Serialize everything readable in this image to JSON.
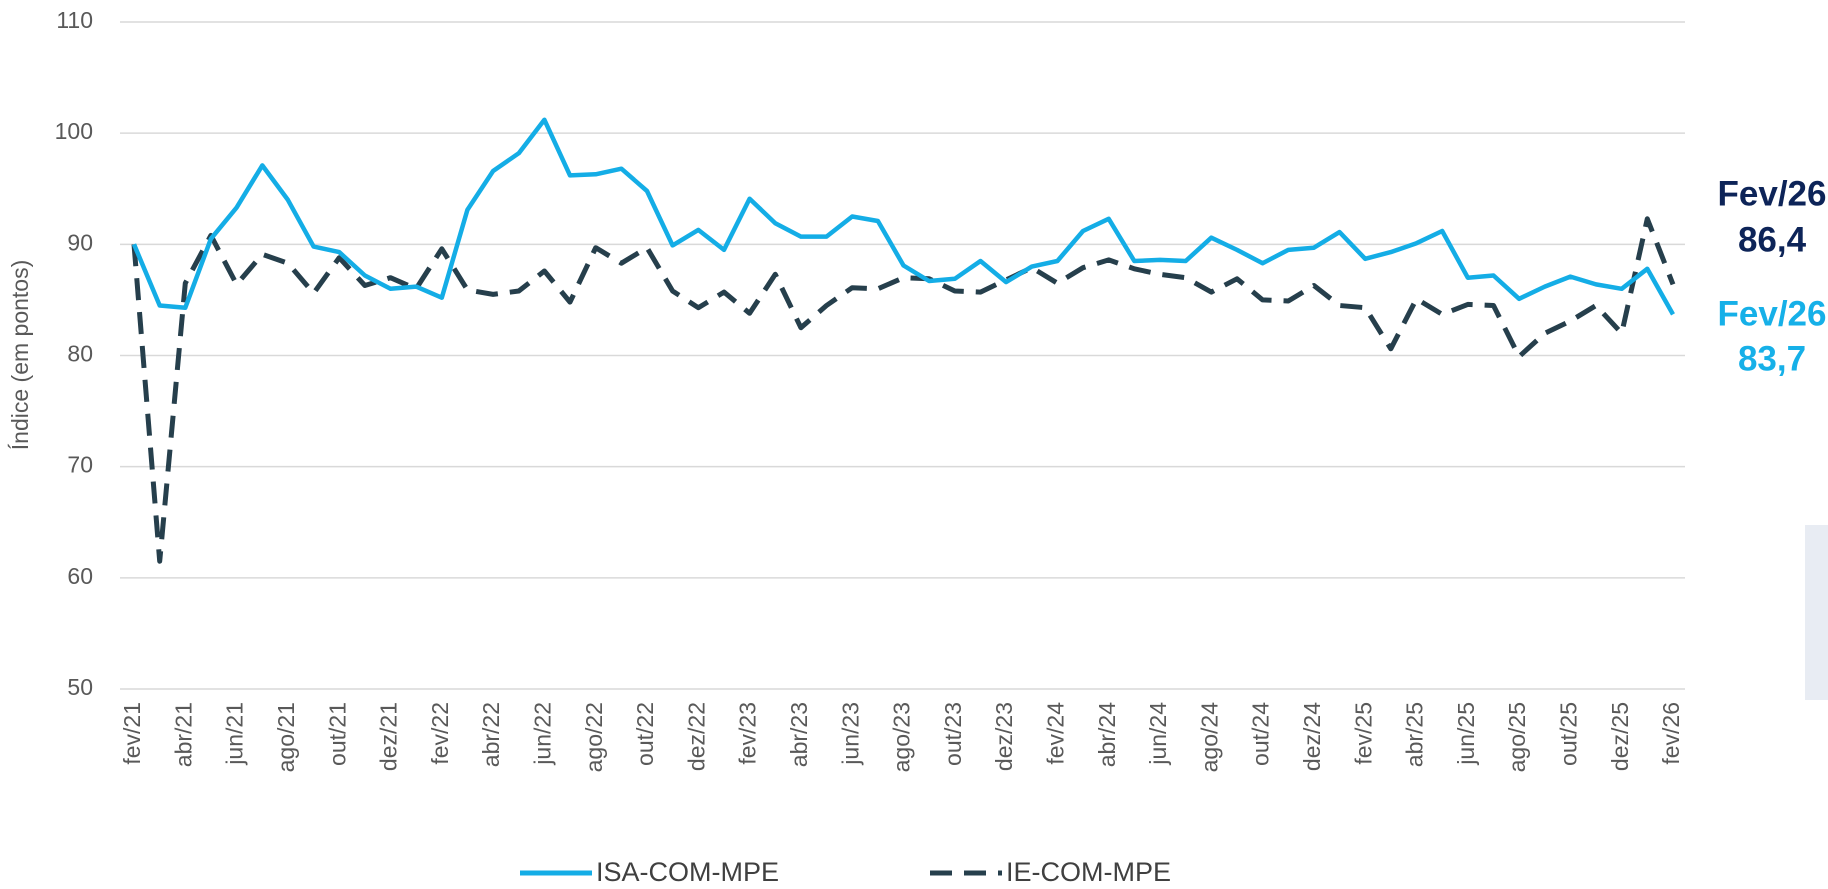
{
  "chart_data": {
    "type": "line",
    "y_label": "Índice (em pontos)",
    "categories": [
      "fev/21",
      null,
      "abr/21",
      null,
      "jun/21",
      null,
      "ago/21",
      null,
      "out/21",
      null,
      "dez/21",
      null,
      "fev/22",
      null,
      "abr/22",
      null,
      "jun/22",
      null,
      "ago/22",
      null,
      "out/22",
      null,
      "dez/22",
      null,
      "fev/23",
      null,
      "abr/23",
      null,
      "jun/23",
      null,
      "ago/23",
      null,
      "out/23",
      null,
      "dez/23",
      null,
      "fev/24",
      null,
      "abr/24",
      null,
      "jun/24",
      null,
      "ago/24",
      null,
      "out/24",
      null,
      "dez/24",
      null,
      "fev/25",
      null,
      "abr/25",
      null,
      "jun/25",
      null,
      "ago/25",
      null,
      "out/25",
      null,
      "dez/25",
      null,
      "fev/26"
    ],
    "series": [
      {
        "name": "ISA-COM-MPE",
        "color": "#14ade6",
        "dashed": false,
        "values": [
          90.0,
          84.5,
          84.3,
          90.5,
          93.3,
          97.1,
          94.0,
          89.8,
          89.3,
          87.2,
          86.0,
          86.2,
          85.2,
          93.1,
          96.6,
          98.2,
          101.2,
          96.2,
          96.3,
          96.8,
          94.8,
          89.9,
          91.3,
          89.5,
          94.1,
          91.9,
          90.7,
          90.7,
          92.5,
          92.1,
          88.1,
          86.7,
          86.9,
          88.5,
          86.6,
          88.0,
          88.5,
          91.2,
          92.3,
          88.5,
          88.6,
          88.5,
          90.6,
          89.5,
          88.3,
          89.5,
          89.7,
          91.1,
          88.7,
          89.3,
          90.1,
          91.2,
          87.0,
          87.2,
          85.1,
          86.2,
          87.1,
          86.4,
          86.0,
          87.8,
          83.7
        ]
      },
      {
        "name": "IE-COM-MPE",
        "color": "#263f4c",
        "dashed": true,
        "values": [
          90.0,
          61.5,
          86.5,
          90.8,
          86.4,
          89.1,
          88.3,
          85.6,
          88.8,
          86.3,
          87.0,
          86.0,
          89.6,
          85.9,
          85.5,
          85.8,
          87.6,
          84.8,
          89.7,
          88.3,
          89.7,
          85.8,
          84.3,
          85.7,
          83.8,
          87.3,
          82.5,
          84.5,
          86.1,
          86.0,
          87.0,
          86.9,
          85.8,
          85.7,
          86.8,
          87.9,
          86.5,
          87.9,
          88.6,
          87.8,
          87.3,
          87.0,
          85.7,
          86.9,
          85.0,
          84.9,
          86.3,
          84.5,
          84.3,
          80.6,
          85.1,
          83.7,
          84.6,
          84.5,
          79.9,
          82.0,
          83.1,
          84.5,
          82.0,
          92.3,
          86.4
        ]
      }
    ],
    "ylim": [
      50,
      110
    ],
    "yticks": [
      50,
      60,
      70,
      80,
      90,
      100,
      110
    ],
    "grid": true,
    "legend": "bottom",
    "annotations": [
      {
        "title": "Fev/26",
        "text": "86,4",
        "color": "#0d2458"
      },
      {
        "title": "Fev/26",
        "text": "83,7",
        "color": "#16b0e8"
      }
    ]
  }
}
